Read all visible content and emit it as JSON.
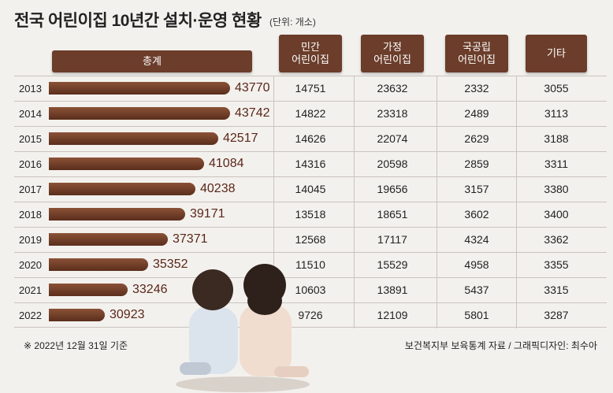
{
  "header": {
    "title": "전국 어린이집 10년간 설치·운영 현황",
    "unit": "(단위: 개소)"
  },
  "columns": {
    "total": "총계",
    "c1": "민간\n어린이집",
    "c2": "가정\n어린이집",
    "c3": "국공립\n어린이집",
    "c4": "기타"
  },
  "footer": {
    "note": "※ 2022년 12월 31일 기준",
    "source": "보건복지부 보육통계 자료 / 그래픽디자인: 최수아"
  },
  "colors": {
    "bar": "#6b3d2a",
    "total_text": "#5a2618"
  },
  "chart_data": {
    "type": "bar",
    "title": "전국 어린이집 10년간 설치·운영 현황",
    "unit": "(단위: 개소)",
    "categories": [
      "2013",
      "2014",
      "2015",
      "2016",
      "2017",
      "2018",
      "2019",
      "2020",
      "2021",
      "2022"
    ],
    "series": [
      {
        "name": "총계",
        "values": [
          43770,
          43742,
          42517,
          41084,
          40238,
          39171,
          37371,
          35352,
          33246,
          30923
        ]
      },
      {
        "name": "민간 어린이집",
        "values": [
          14751,
          14822,
          14626,
          14316,
          14045,
          13518,
          12568,
          11510,
          10603,
          9726
        ]
      },
      {
        "name": "가정 어린이집",
        "values": [
          23632,
          23318,
          22074,
          20598,
          19656,
          18651,
          17117,
          15529,
          13891,
          12109
        ]
      },
      {
        "name": "국공립 어린이집",
        "values": [
          2332,
          2489,
          2629,
          2859,
          3157,
          3602,
          4324,
          4958,
          5437,
          5801
        ]
      },
      {
        "name": "기타",
        "values": [
          3055,
          3113,
          3188,
          3311,
          3380,
          3400,
          3362,
          3355,
          3315,
          3287
        ]
      }
    ]
  }
}
